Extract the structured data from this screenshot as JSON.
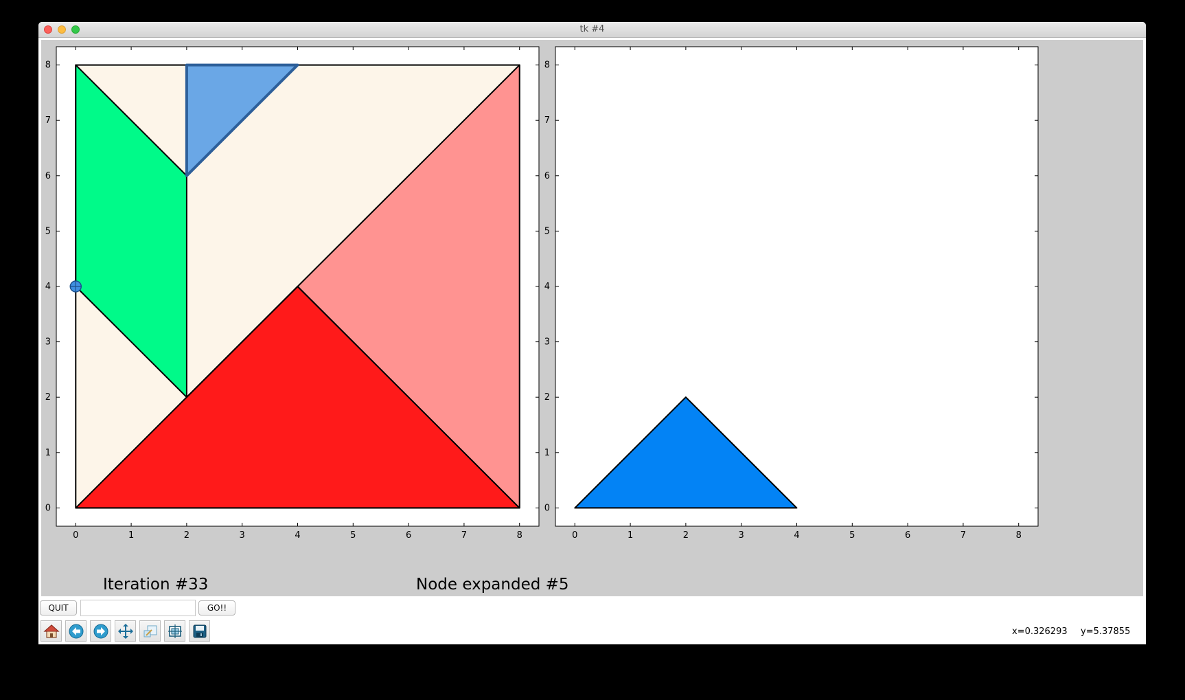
{
  "window": {
    "title": "tk #4"
  },
  "figure": {
    "left_label": "Iteration #33",
    "right_label": "Node expanded #5"
  },
  "chart_data": [
    {
      "type": "polygon-plot",
      "name": "board",
      "xlim": [
        -0.35,
        8.35
      ],
      "ylim": [
        -0.33,
        8.33
      ],
      "xticks": [
        0,
        1,
        2,
        3,
        4,
        5,
        6,
        7,
        8
      ],
      "yticks": [
        0,
        1,
        2,
        3,
        4,
        5,
        6,
        7,
        8
      ],
      "grid": false,
      "shapes": [
        {
          "piece": "board",
          "points": [
            [
              0,
              0
            ],
            [
              8,
              0
            ],
            [
              8,
              8
            ],
            [
              0,
              8
            ]
          ],
          "fill": "#fdf5e9",
          "stroke": "#000"
        },
        {
          "piece": "large-triangle-bottom",
          "points": [
            [
              0,
              0
            ],
            [
              8,
              0
            ],
            [
              4,
              4
            ]
          ],
          "fill": "#ff1a1a",
          "stroke": "#000"
        },
        {
          "piece": "large-triangle-right",
          "points": [
            [
              8,
              0
            ],
            [
              8,
              8
            ],
            [
              4,
              4
            ]
          ],
          "fill": "#ff9391",
          "stroke": "#000"
        },
        {
          "piece": "parallelogram",
          "points": [
            [
              0,
              8
            ],
            [
              2,
              6
            ],
            [
              2,
              2
            ],
            [
              0,
              4
            ]
          ],
          "fill": "#00fa89",
          "stroke": "#000"
        },
        {
          "piece": "small-triangle-selected",
          "points": [
            [
              2,
              8
            ],
            [
              4,
              8
            ],
            [
              2,
              6
            ]
          ],
          "fill": "#6aa7e6",
          "stroke": "#2d5f9a"
        },
        {
          "piece": "empty-region-edge",
          "points": [
            [
              2,
              2
            ],
            [
              4,
              4
            ]
          ],
          "fill": "none",
          "stroke": "#000"
        }
      ],
      "marker": {
        "x": 0,
        "y": 4,
        "color": "#3f8fe0"
      }
    },
    {
      "type": "polygon-plot",
      "name": "next-piece",
      "xlim": [
        -0.35,
        8.35
      ],
      "ylim": [
        -0.33,
        8.33
      ],
      "xticks": [
        0,
        1,
        2,
        3,
        4,
        5,
        6,
        7,
        8
      ],
      "yticks": [
        0,
        1,
        2,
        3,
        4,
        5,
        6,
        7,
        8
      ],
      "grid": false,
      "shapes": [
        {
          "piece": "medium-triangle",
          "points": [
            [
              0,
              0
            ],
            [
              4,
              0
            ],
            [
              2,
              2
            ]
          ],
          "fill": "#0383f5",
          "stroke": "#000"
        }
      ]
    }
  ],
  "controls": {
    "quit_label": "QUIT",
    "entry_value": "",
    "go_label": "GO!!"
  },
  "toolbar": {
    "tools": [
      {
        "name": "home-icon"
      },
      {
        "name": "back-icon"
      },
      {
        "name": "forward-icon"
      },
      {
        "name": "pan-icon"
      },
      {
        "name": "zoom-icon"
      },
      {
        "name": "subplots-icon"
      },
      {
        "name": "save-icon"
      }
    ],
    "x_readout": "x=0.326293",
    "y_readout": "y=5.37855"
  }
}
